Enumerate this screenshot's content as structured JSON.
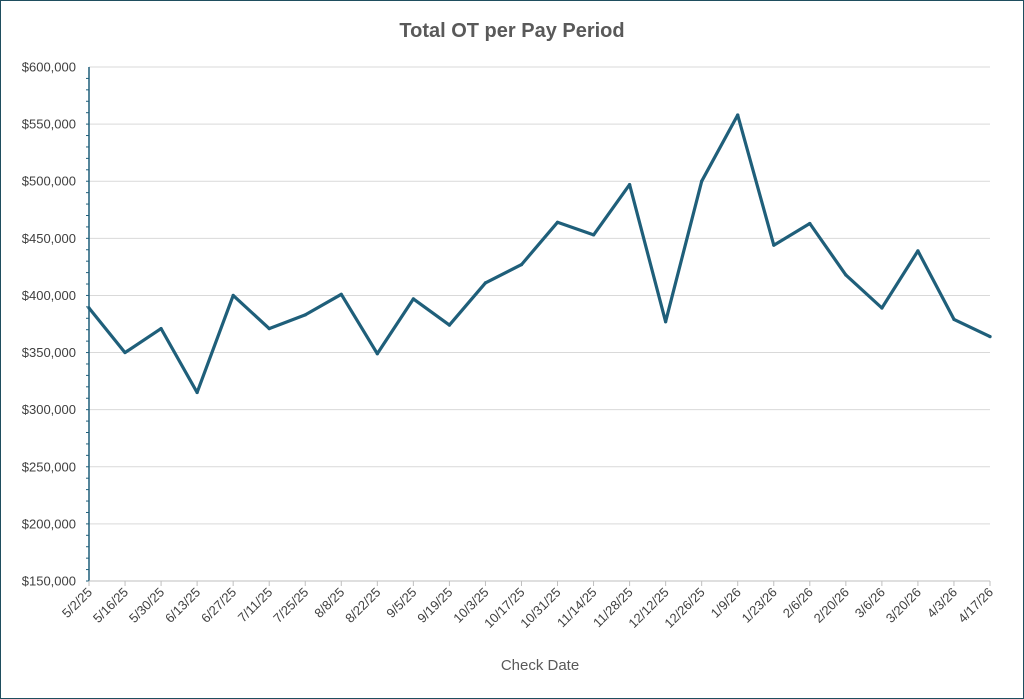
{
  "chart_data": {
    "type": "line",
    "title": "Total OT per Pay Period",
    "xlabel": "Check Date",
    "ylabel": "",
    "ylim": [
      150000,
      600000
    ],
    "y_step": 50000,
    "y_tick_labels": [
      "$150,000",
      "$200,000",
      "$250,000",
      "$300,000",
      "$350,000",
      "$400,000",
      "$450,000",
      "$500,000",
      "$550,000",
      "$600,000"
    ],
    "grid": true,
    "legend": "none",
    "line_color": "#1f5f7a",
    "categories": [
      "5/2/25",
      "5/16/25",
      "5/30/25",
      "6/13/25",
      "6/27/25",
      "7/11/25",
      "7/25/25",
      "8/8/25",
      "8/22/25",
      "9/5/25",
      "9/19/25",
      "10/3/25",
      "10/17/25",
      "10/31/25",
      "11/14/25",
      "11/28/25",
      "12/12/25",
      "12/26/25",
      "1/9/26",
      "1/23/26",
      "2/6/26",
      "2/20/26",
      "3/6/26",
      "3/20/26",
      "4/3/26",
      "4/17/26"
    ],
    "series": [
      {
        "values": [
          389000,
          350000,
          371000,
          315000,
          400000,
          371000,
          383000,
          401000,
          349000,
          397000,
          374000,
          411000,
          427000,
          464000,
          453000,
          497000,
          377000,
          500000,
          558000,
          444000,
          463000,
          418000,
          389000,
          439000,
          379000,
          364000
        ]
      }
    ]
  }
}
